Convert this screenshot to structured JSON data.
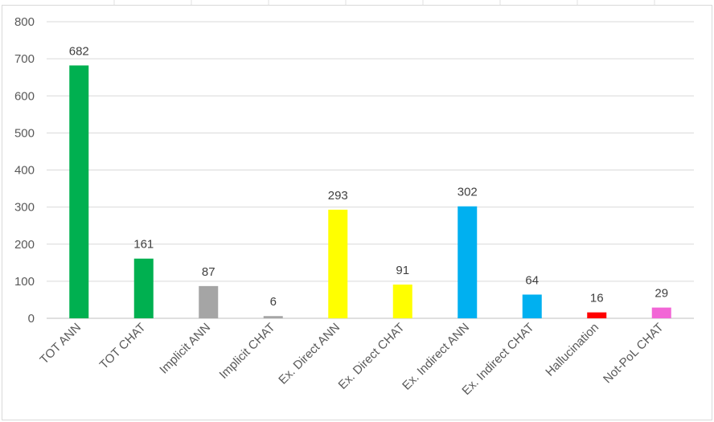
{
  "chart_data": {
    "type": "bar",
    "title": "",
    "xlabel": "",
    "ylabel": "",
    "categories": [
      "TOT ANN",
      "TOT CHAT",
      "Implicit ANN",
      "Implicit CHAT",
      "Ex. Direct ANN",
      "Ex. Direct CHAT",
      "Ex. Indirect ANN",
      "Ex. Indirect CHAT",
      "Hallucination",
      "Not-PoL CHAT"
    ],
    "values": [
      682,
      161,
      87,
      6,
      293,
      91,
      302,
      64,
      16,
      29
    ],
    "data_labels": [
      "682",
      "161",
      "87",
      "6",
      "293",
      "91",
      "302",
      "64",
      "16",
      "29"
    ],
    "bar_colors": [
      "#00b050",
      "#00b050",
      "#a5a5a5",
      "#a5a5a5",
      "#ffff00",
      "#ffff00",
      "#00b0f0",
      "#00b0f0",
      "#ff0000",
      "#f266d6"
    ],
    "ylim": [
      0,
      800
    ],
    "yticks": [
      "0",
      "100",
      "200",
      "300",
      "400",
      "500",
      "600",
      "700",
      "800"
    ],
    "grid": true,
    "legend": "none"
  }
}
